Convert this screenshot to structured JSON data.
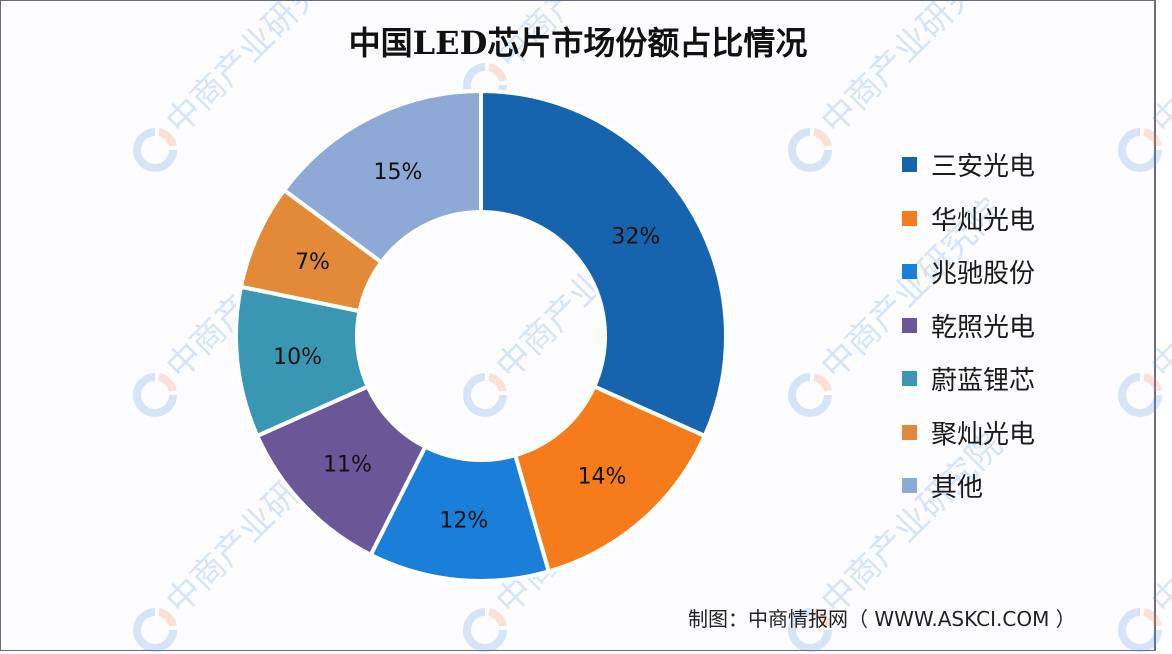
{
  "title": "中国LED芯片市场份额占比情况",
  "source": "制图：中商情报网（ WWW.ASKCI.COM ）",
  "legend": [
    {
      "label": "三安光电",
      "color": "#1764ae"
    },
    {
      "label": "华灿光电",
      "color": "#f57b1b"
    },
    {
      "label": "兆驰股份",
      "color": "#1a7fd8"
    },
    {
      "label": "乾照光电",
      "color": "#6a5797"
    },
    {
      "label": "蔚蓝锂芯",
      "color": "#3a97b4"
    },
    {
      "label": "聚灿光电",
      "color": "#e28a37"
    },
    {
      "label": "其他",
      "color": "#8ea9d6"
    }
  ],
  "watermark_text": "中商产业研究院",
  "chart_data": {
    "type": "pie",
    "subtype": "donut",
    "title": "中国LED芯片市场份额占比情况",
    "categories": [
      "三安光电",
      "华灿光电",
      "兆驰股份",
      "乾照光电",
      "蔚蓝锂芯",
      "聚灿光电",
      "其他"
    ],
    "values": [
      32,
      14,
      12,
      11,
      10,
      7,
      15
    ],
    "labels": [
      "32%",
      "14%",
      "12%",
      "11%",
      "10%",
      "7%",
      "15%"
    ],
    "colors": [
      "#1764ae",
      "#f57b1b",
      "#1a7fd8",
      "#6a5797",
      "#3a97b4",
      "#e28a37",
      "#8ea9d6"
    ],
    "unit": "%",
    "start_angle": "12 o'clock, clockwise",
    "legend_position": "right",
    "source": "制图：中商情报网（ WWW.ASKCI.COM ）"
  }
}
